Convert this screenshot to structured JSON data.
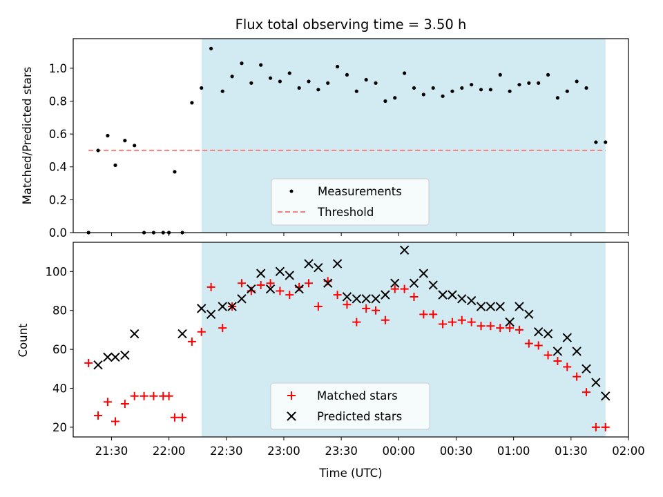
{
  "chart_data": [
    {
      "type": "scatter",
      "title": "Flux total observing time = 3.50 h",
      "xlabel": "",
      "ylabel": "Matched/Predicted stars",
      "xlim": [
        "21:10",
        "02:00"
      ],
      "ylim": [
        0,
        1.18
      ],
      "yticks": [
        0.0,
        0.2,
        0.4,
        0.6,
        0.8,
        1.0
      ],
      "ytick_labels": [
        "0.0",
        "0.2",
        "0.4",
        "0.6",
        "0.8",
        "1.0"
      ],
      "shaded_interval": [
        "22:17",
        "01:48"
      ],
      "shade_color": "#add8e6",
      "legend_position": "lower center",
      "series": [
        {
          "name": "Measurements",
          "kind": "scatter",
          "marker": "dot",
          "color": "#000000",
          "x": [
            "21:18",
            "21:23",
            "21:28",
            "21:32",
            "21:37",
            "21:42",
            "21:47",
            "21:52",
            "21:57",
            "22:00",
            "22:03",
            "22:07",
            "22:12",
            "22:17",
            "22:22",
            "22:28",
            "22:33",
            "22:38",
            "22:43",
            "22:48",
            "22:53",
            "22:58",
            "23:03",
            "23:08",
            "23:13",
            "23:18",
            "23:23",
            "23:28",
            "23:33",
            "23:38",
            "23:43",
            "23:48",
            "23:53",
            "23:58",
            "00:03",
            "00:08",
            "00:13",
            "00:18",
            "00:23",
            "00:28",
            "00:33",
            "00:38",
            "00:43",
            "00:48",
            "00:53",
            "00:58",
            "01:03",
            "01:08",
            "01:13",
            "01:18",
            "01:23",
            "01:28",
            "01:33",
            "01:38",
            "01:43",
            "01:48"
          ],
          "y": [
            0.0,
            0.5,
            0.59,
            0.41,
            0.56,
            0.53,
            0.0,
            0.0,
            0.0,
            0.0,
            0.37,
            0.0,
            0.79,
            0.88,
            1.12,
            0.86,
            0.95,
            1.03,
            0.91,
            1.02,
            0.94,
            0.92,
            0.97,
            0.88,
            0.92,
            0.87,
            0.91,
            1.01,
            0.96,
            0.86,
            0.93,
            0.91,
            0.8,
            0.82,
            0.97,
            0.88,
            0.84,
            0.88,
            0.83,
            0.86,
            0.88,
            0.9,
            0.87,
            0.87,
            0.96,
            0.86,
            0.9,
            0.91,
            0.91,
            0.96,
            0.82,
            0.86,
            0.92,
            0.88,
            0.55,
            0.55
          ]
        },
        {
          "name": "Threshold",
          "kind": "line",
          "style": "dashed",
          "color": "#f08080",
          "x": [
            "21:18",
            "01:48"
          ],
          "y": [
            0.5,
            0.5
          ]
        }
      ]
    },
    {
      "type": "scatter",
      "title": "",
      "xlabel": "Time (UTC)",
      "ylabel": "Count",
      "xlim": [
        "21:10",
        "02:00"
      ],
      "ylim": [
        15,
        115
      ],
      "xticks": [
        "21:30",
        "22:00",
        "22:30",
        "23:00",
        "23:30",
        "00:00",
        "00:30",
        "01:00",
        "01:30",
        "02:00"
      ],
      "yticks": [
        20,
        40,
        60,
        80,
        100
      ],
      "ytick_labels": [
        "20",
        "40",
        "60",
        "80",
        "100"
      ],
      "shaded_interval": [
        "22:17",
        "01:48"
      ],
      "shade_color": "#add8e6",
      "legend_position": "lower center",
      "series": [
        {
          "name": "Matched stars",
          "kind": "scatter",
          "marker": "plus",
          "color": "#ff0000",
          "x": [
            "21:18",
            "21:23",
            "21:28",
            "21:32",
            "21:37",
            "21:42",
            "21:47",
            "21:52",
            "21:57",
            "22:00",
            "22:03",
            "22:07",
            "22:12",
            "22:17",
            "22:22",
            "22:28",
            "22:33",
            "22:38",
            "22:43",
            "22:48",
            "22:53",
            "22:58",
            "23:03",
            "23:08",
            "23:13",
            "23:18",
            "23:23",
            "23:28",
            "23:33",
            "23:38",
            "23:43",
            "23:48",
            "23:53",
            "23:58",
            "00:03",
            "00:08",
            "00:13",
            "00:18",
            "00:23",
            "00:28",
            "00:33",
            "00:38",
            "00:43",
            "00:48",
            "00:53",
            "00:58",
            "01:03",
            "01:08",
            "01:13",
            "01:18",
            "01:23",
            "01:28",
            "01:33",
            "01:38",
            "01:43",
            "01:48"
          ],
          "y": [
            53,
            26,
            33,
            23,
            32,
            36,
            36,
            36,
            36,
            36,
            25,
            25,
            64,
            69,
            92,
            71,
            82,
            94,
            90,
            93,
            94,
            90,
            88,
            92,
            94,
            82,
            95,
            88,
            83,
            74,
            81,
            80,
            75,
            91,
            91,
            87,
            78,
            78,
            73,
            74,
            75,
            74,
            72,
            72,
            71,
            71,
            70,
            63,
            62,
            57,
            54,
            51,
            46,
            38,
            20,
            20
          ]
        },
        {
          "name": "Predicted stars",
          "kind": "scatter",
          "marker": "x",
          "color": "#000000",
          "x": [
            "21:23",
            "21:28",
            "21:32",
            "21:37",
            "21:42",
            "22:07",
            "22:17",
            "22:22",
            "22:28",
            "22:33",
            "22:38",
            "22:43",
            "22:48",
            "22:53",
            "22:58",
            "23:03",
            "23:08",
            "23:13",
            "23:18",
            "23:23",
            "23:28",
            "23:33",
            "23:38",
            "23:43",
            "23:48",
            "23:53",
            "23:58",
            "00:03",
            "00:08",
            "00:13",
            "00:18",
            "00:23",
            "00:28",
            "00:33",
            "00:38",
            "00:43",
            "00:48",
            "00:53",
            "00:58",
            "01:03",
            "01:08",
            "01:13",
            "01:18",
            "01:23",
            "01:28",
            "01:33",
            "01:38",
            "01:43",
            "01:48"
          ],
          "y": [
            52,
            56,
            56,
            57,
            68,
            68,
            81,
            78,
            82,
            82,
            86,
            91,
            99,
            91,
            100,
            98,
            91,
            104,
            102,
            94,
            104,
            87,
            86,
            86,
            86,
            88,
            94,
            111,
            94,
            99,
            93,
            88,
            88,
            86,
            85,
            82,
            82,
            82,
            74,
            82,
            78,
            69,
            68,
            59,
            66,
            59,
            50,
            43,
            36
          ]
        }
      ]
    }
  ]
}
